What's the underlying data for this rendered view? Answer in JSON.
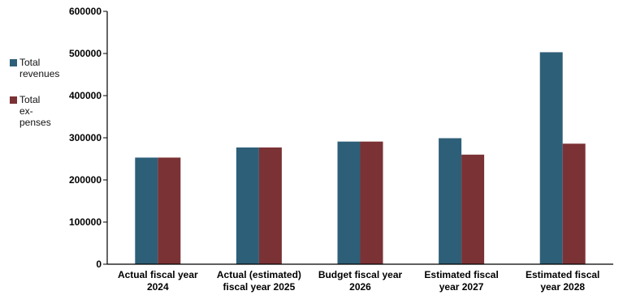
{
  "chart_data": {
    "type": "bar",
    "categories": [
      [
        "Actual fiscal year",
        "2024"
      ],
      [
        "Actual (estimated)",
        "fiscal year 2025"
      ],
      [
        "Budget fiscal year",
        "2026"
      ],
      [
        "Estimated fiscal",
        "year 2027"
      ],
      [
        "Estimated fiscal",
        "year 2028"
      ]
    ],
    "series": [
      {
        "name": "Total\nrevenues",
        "color": "#2e5f78",
        "values": [
          253000,
          277000,
          291000,
          299000,
          503000
        ]
      },
      {
        "name": "Total\nex-\npenses",
        "color": "#7b3235",
        "values": [
          253000,
          277000,
          291000,
          260000,
          286000
        ]
      }
    ],
    "ylim": [
      0,
      600000
    ],
    "yticks": [
      0,
      100000,
      200000,
      300000,
      400000,
      500000,
      600000
    ],
    "grid": false,
    "legend": "left",
    "title": "",
    "xlabel": "",
    "ylabel": ""
  }
}
